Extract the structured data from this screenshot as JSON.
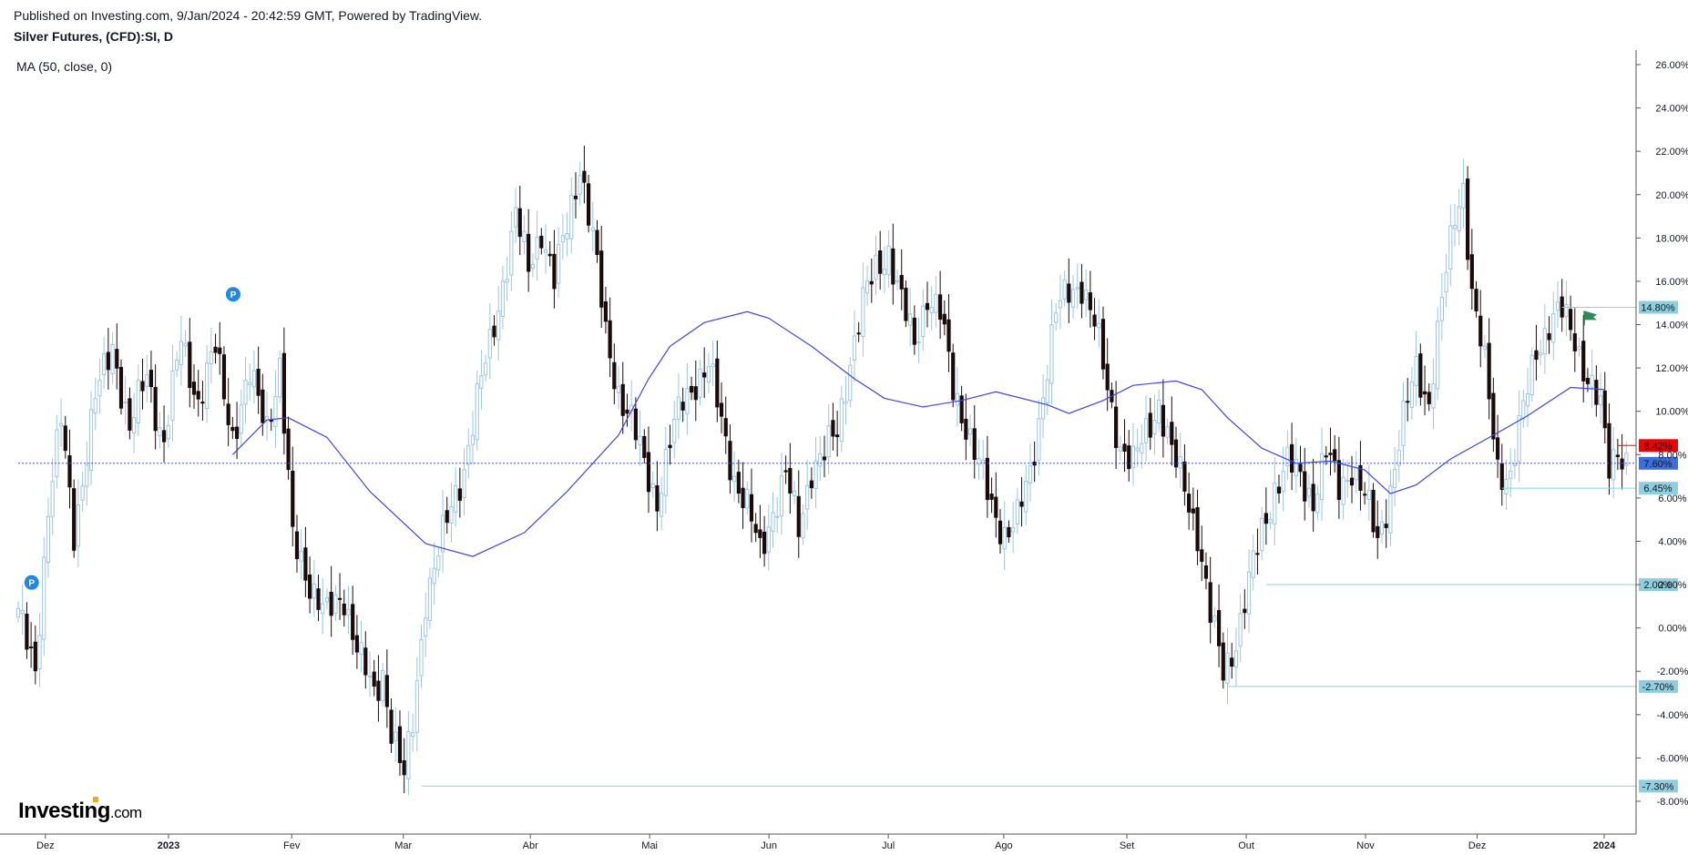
{
  "header": {
    "published": "Published on Investing.com, 9/Jan/2024 - 20:42:59 GMT, Powered by TradingView.",
    "title": "Silver Futures, (CFD):SI, D",
    "indicator": "MA (50, close, 0)"
  },
  "logo": {
    "brand": "Investing",
    "suffix": ".com"
  },
  "chart_data": {
    "type": "candlestick",
    "title": "Silver Futures, (CFD):SI, D",
    "yunit": "%",
    "ylim": [
      -9,
      26.5
    ],
    "y_ticks": [
      "26.00%",
      "24.00%",
      "22.00%",
      "20.00%",
      "18.00%",
      "16.00%",
      "14.00%",
      "12.00%",
      "10.00%",
      "8.00%",
      "6.00%",
      "4.00%",
      "2.00%",
      "0.00%",
      "-2.00%",
      "-4.00%",
      "-6.00%",
      "-8.00%"
    ],
    "x_ticks": [
      "Dez",
      "2023",
      "Fev",
      "Mar",
      "Abr",
      "Mai",
      "Jun",
      "Jul",
      "Ago",
      "Set",
      "Out",
      "Nov",
      "Dez",
      "2024"
    ],
    "key_points": [
      {
        "t": 0,
        "v": 0.5
      },
      {
        "t": 4,
        "v": -1.8
      },
      {
        "t": 7,
        "v": 5.5
      },
      {
        "t": 10,
        "v": 9.5
      },
      {
        "t": 13,
        "v": 4.5
      },
      {
        "t": 18,
        "v": 10.5
      },
      {
        "t": 22,
        "v": 13.2
      },
      {
        "t": 26,
        "v": 9.0
      },
      {
        "t": 30,
        "v": 11.8
      },
      {
        "t": 34,
        "v": 8.5
      },
      {
        "t": 38,
        "v": 13.3
      },
      {
        "t": 42,
        "v": 10.5
      },
      {
        "t": 46,
        "v": 12.8
      },
      {
        "t": 50,
        "v": 9.0
      },
      {
        "t": 54,
        "v": 11.5
      },
      {
        "t": 58,
        "v": 9.5
      },
      {
        "t": 61,
        "v": 12.0
      },
      {
        "t": 64,
        "v": 4.0
      },
      {
        "t": 68,
        "v": 2.2
      },
      {
        "t": 72,
        "v": 0.5
      },
      {
        "t": 76,
        "v": 1.5
      },
      {
        "t": 80,
        "v": -1.5
      },
      {
        "t": 83,
        "v": -3.3
      },
      {
        "t": 85,
        "v": -2.0
      },
      {
        "t": 87,
        "v": -4.5
      },
      {
        "t": 90,
        "v": -7.0
      },
      {
        "t": 92,
        "v": -4.5
      },
      {
        "t": 95,
        "v": 1.5
      },
      {
        "t": 98,
        "v": 3.5
      },
      {
        "t": 101,
        "v": 5.5
      },
      {
        "t": 104,
        "v": 7.5
      },
      {
        "t": 107,
        "v": 10.5
      },
      {
        "t": 110,
        "v": 13.0
      },
      {
        "t": 113,
        "v": 16.0
      },
      {
        "t": 116,
        "v": 19.0
      },
      {
        "t": 119,
        "v": 16.5
      },
      {
        "t": 122,
        "v": 18.5
      },
      {
        "t": 125,
        "v": 16.0
      },
      {
        "t": 128,
        "v": 18.5
      },
      {
        "t": 131,
        "v": 21.5
      },
      {
        "t": 134,
        "v": 18.0
      },
      {
        "t": 137,
        "v": 13.5
      },
      {
        "t": 140,
        "v": 11.0
      },
      {
        "t": 143,
        "v": 9.5
      },
      {
        "t": 146,
        "v": 7.5
      },
      {
        "t": 149,
        "v": 6.0
      },
      {
        "t": 152,
        "v": 8.5
      },
      {
        "t": 155,
        "v": 10.5
      },
      {
        "t": 158,
        "v": 11.5
      },
      {
        "t": 161,
        "v": 12.0
      },
      {
        "t": 164,
        "v": 9.5
      },
      {
        "t": 167,
        "v": 7.0
      },
      {
        "t": 170,
        "v": 5.5
      },
      {
        "t": 173,
        "v": 3.5
      },
      {
        "t": 176,
        "v": 5.5
      },
      {
        "t": 179,
        "v": 7.0
      },
      {
        "t": 182,
        "v": 4.5
      },
      {
        "t": 185,
        "v": 7.5
      },
      {
        "t": 188,
        "v": 8.0
      },
      {
        "t": 191,
        "v": 9.0
      },
      {
        "t": 194,
        "v": 12.5
      },
      {
        "t": 197,
        "v": 15.0
      },
      {
        "t": 200,
        "v": 16.5
      },
      {
        "t": 203,
        "v": 17.5
      },
      {
        "t": 206,
        "v": 15.0
      },
      {
        "t": 209,
        "v": 13.0
      },
      {
        "t": 212,
        "v": 15.5
      },
      {
        "t": 215,
        "v": 14.5
      },
      {
        "t": 218,
        "v": 11.0
      },
      {
        "t": 221,
        "v": 9.5
      },
      {
        "t": 224,
        "v": 7.5
      },
      {
        "t": 227,
        "v": 5.5
      },
      {
        "t": 230,
        "v": 4.5
      },
      {
        "t": 233,
        "v": 5.0
      },
      {
        "t": 236,
        "v": 7.0
      },
      {
        "t": 239,
        "v": 11.0
      },
      {
        "t": 242,
        "v": 14.5
      },
      {
        "t": 245,
        "v": 15.5
      },
      {
        "t": 248,
        "v": 16.0
      },
      {
        "t": 251,
        "v": 14.0
      },
      {
        "t": 254,
        "v": 11.0
      },
      {
        "t": 257,
        "v": 8.5
      },
      {
        "t": 260,
        "v": 7.5
      },
      {
        "t": 263,
        "v": 9.0
      },
      {
        "t": 266,
        "v": 10.5
      },
      {
        "t": 269,
        "v": 8.0
      },
      {
        "t": 272,
        "v": 6.5
      },
      {
        "t": 275,
        "v": 4.5
      },
      {
        "t": 278,
        "v": 0.5
      },
      {
        "t": 281,
        "v": -2.0
      },
      {
        "t": 284,
        "v": -0.5
      },
      {
        "t": 287,
        "v": 2.0
      },
      {
        "t": 290,
        "v": 4.5
      },
      {
        "t": 293,
        "v": 6.5
      },
      {
        "t": 296,
        "v": 7.5
      },
      {
        "t": 299,
        "v": 7.0
      },
      {
        "t": 302,
        "v": 6.0
      },
      {
        "t": 305,
        "v": 8.0
      },
      {
        "t": 308,
        "v": 6.5
      },
      {
        "t": 311,
        "v": 7.5
      },
      {
        "t": 314,
        "v": 6.0
      },
      {
        "t": 317,
        "v": 4.0
      },
      {
        "t": 320,
        "v": 6.5
      },
      {
        "t": 323,
        "v": 9.5
      },
      {
        "t": 326,
        "v": 12.0
      },
      {
        "t": 329,
        "v": 10.5
      },
      {
        "t": 332,
        "v": 15.0
      },
      {
        "t": 335,
        "v": 19.0
      },
      {
        "t": 337,
        "v": 20.5
      },
      {
        "t": 339,
        "v": 15.5
      },
      {
        "t": 342,
        "v": 12.0
      },
      {
        "t": 345,
        "v": 7.5
      },
      {
        "t": 348,
        "v": 7.0
      },
      {
        "t": 351,
        "v": 10.0
      },
      {
        "t": 354,
        "v": 13.0
      },
      {
        "t": 357,
        "v": 14.0
      },
      {
        "t": 360,
        "v": 14.5
      },
      {
        "t": 363,
        "v": 13.5
      },
      {
        "t": 366,
        "v": 11.5
      },
      {
        "t": 369,
        "v": 10.0
      },
      {
        "t": 371,
        "v": 7.5
      },
      {
        "t": 373,
        "v": 8.5
      },
      {
        "t": 375,
        "v": 7.6
      }
    ],
    "moving_average": {
      "name": "MA (50, close, 0)",
      "color": "#3f44e8",
      "points": [
        {
          "t": 50,
          "v": 8.0
        },
        {
          "t": 58,
          "v": 9.6
        },
        {
          "t": 63,
          "v": 9.7
        },
        {
          "t": 72,
          "v": 8.8
        },
        {
          "t": 82,
          "v": 6.3
        },
        {
          "t": 95,
          "v": 3.9
        },
        {
          "t": 106,
          "v": 3.3
        },
        {
          "t": 118,
          "v": 4.4
        },
        {
          "t": 128,
          "v": 6.3
        },
        {
          "t": 140,
          "v": 8.9
        },
        {
          "t": 147,
          "v": 11.5
        },
        {
          "t": 152,
          "v": 13.0
        },
        {
          "t": 160,
          "v": 14.1
        },
        {
          "t": 170,
          "v": 14.6
        },
        {
          "t": 175,
          "v": 14.3
        },
        {
          "t": 185,
          "v": 13.0
        },
        {
          "t": 195,
          "v": 11.5
        },
        {
          "t": 202,
          "v": 10.6
        },
        {
          "t": 211,
          "v": 10.2
        },
        {
          "t": 220,
          "v": 10.5
        },
        {
          "t": 228,
          "v": 10.9
        },
        {
          "t": 240,
          "v": 10.3
        },
        {
          "t": 245,
          "v": 9.9
        },
        {
          "t": 253,
          "v": 10.5
        },
        {
          "t": 260,
          "v": 11.2
        },
        {
          "t": 270,
          "v": 11.4
        },
        {
          "t": 276,
          "v": 11.0
        },
        {
          "t": 282,
          "v": 9.7
        },
        {
          "t": 290,
          "v": 8.3
        },
        {
          "t": 298,
          "v": 7.6
        },
        {
          "t": 306,
          "v": 7.7
        },
        {
          "t": 314,
          "v": 7.3
        },
        {
          "t": 320,
          "v": 6.2
        },
        {
          "t": 326,
          "v": 6.6
        },
        {
          "t": 334,
          "v": 7.8
        },
        {
          "t": 344,
          "v": 8.9
        },
        {
          "t": 352,
          "v": 9.8
        },
        {
          "t": 362,
          "v": 11.1
        },
        {
          "t": 370,
          "v": 11.0
        }
      ]
    },
    "horizontal_levels": [
      {
        "label": "14.80%",
        "value": 14.8,
        "from_t": 360,
        "color": "#8ecfdf"
      },
      {
        "label": "8.42%",
        "value": 8.42,
        "from_t": 373,
        "color": "#f00000"
      },
      {
        "label": "7.60%",
        "value": 7.6,
        "from_t": 0,
        "color": "#3b5bdb",
        "dotted": true
      },
      {
        "label": "6.45%",
        "value": 6.45,
        "from_t": 346,
        "color": "#8ecfdf"
      },
      {
        "label": "2.00%",
        "value": 2.0,
        "from_t": 291,
        "color": "#8ecfdf"
      },
      {
        "label": "-2.70%",
        "value": -2.7,
        "from_t": 282,
        "color": "#8ecfdf"
      },
      {
        "label": "-7.30%",
        "value": -7.3,
        "from_t": 94,
        "color": "#8ecfdf"
      }
    ],
    "pivot_markers": [
      {
        "label": "P",
        "t": 1,
        "v": 2.1
      },
      {
        "label": "P",
        "t": 48,
        "v": 15.4
      }
    ],
    "flag_marker": {
      "t": 362,
      "v": 14.3,
      "color": "#2e8b57"
    },
    "colors": {
      "up": "#9ac6e6",
      "down": "#1a0b0b",
      "grid": "#e8e8e8",
      "axis": "#555555"
    }
  }
}
